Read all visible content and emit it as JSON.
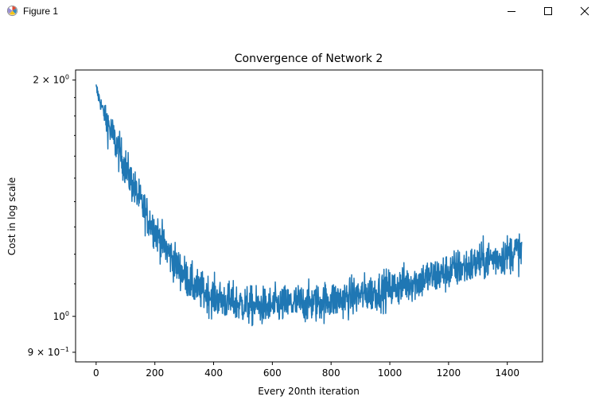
{
  "window": {
    "title": "Figure 1",
    "icon": "matplotlib-icon",
    "controls": {
      "minimize_icon": "minimize-icon",
      "maximize_icon": "maximize-icon",
      "close_icon": "close-icon"
    }
  },
  "chart_data": {
    "type": "line",
    "title": "Convergence of Network 2",
    "xlabel": "Every 20nth iteration",
    "ylabel": "Cost in log scale",
    "xlim": [
      -70,
      1520
    ],
    "ylim": [
      0.875,
      2.06
    ],
    "yscale": "log",
    "grid": false,
    "line_color": "#1f77b4",
    "xticks": [
      {
        "value": 0,
        "label": "0"
      },
      {
        "value": 200,
        "label": "200"
      },
      {
        "value": 400,
        "label": "400"
      },
      {
        "value": 600,
        "label": "600"
      },
      {
        "value": 800,
        "label": "800"
      },
      {
        "value": 1000,
        "label": "1000"
      },
      {
        "value": 1200,
        "label": "1200"
      },
      {
        "value": 1400,
        "label": "1400"
      }
    ],
    "yticks": [
      {
        "value": 2.0,
        "label": "2 × 10",
        "exp": "0"
      },
      {
        "value": 1.0,
        "label": "10",
        "exp": "0"
      },
      {
        "value": 0.9,
        "label": "9 × 10",
        "exp": "−1"
      }
    ],
    "n_points": 1450,
    "series": [
      {
        "x": [
          0,
          25,
          50,
          75,
          100,
          125,
          150,
          175,
          200,
          225,
          250,
          275,
          300,
          325,
          350,
          375,
          400,
          425,
          450,
          475,
          500,
          525,
          550,
          575,
          600,
          625,
          650,
          675,
          700,
          725,
          750,
          775,
          800,
          825,
          850,
          875,
          900,
          925,
          950,
          975,
          1000,
          1025,
          1050,
          1075,
          1100,
          1125,
          1150,
          1175,
          1200,
          1225,
          1250,
          1275,
          1300,
          1325,
          1350,
          1375,
          1400,
          1425,
          1449
        ],
        "y": [
          1.95,
          1.82,
          1.72,
          1.63,
          1.55,
          1.47,
          1.4,
          1.34,
          1.29,
          1.24,
          1.2,
          1.16,
          1.13,
          1.1,
          1.08,
          1.07,
          1.06,
          1.05,
          1.045,
          1.04,
          1.035,
          1.03,
          1.03,
          1.03,
          1.03,
          1.035,
          1.035,
          1.04,
          1.04,
          1.04,
          1.04,
          1.045,
          1.05,
          1.05,
          1.055,
          1.06,
          1.065,
          1.07,
          1.075,
          1.08,
          1.085,
          1.09,
          1.1,
          1.105,
          1.11,
          1.12,
          1.125,
          1.13,
          1.14,
          1.15,
          1.155,
          1.16,
          1.17,
          1.18,
          1.185,
          1.19,
          1.2,
          1.21,
          1.21
        ]
      }
    ]
  }
}
